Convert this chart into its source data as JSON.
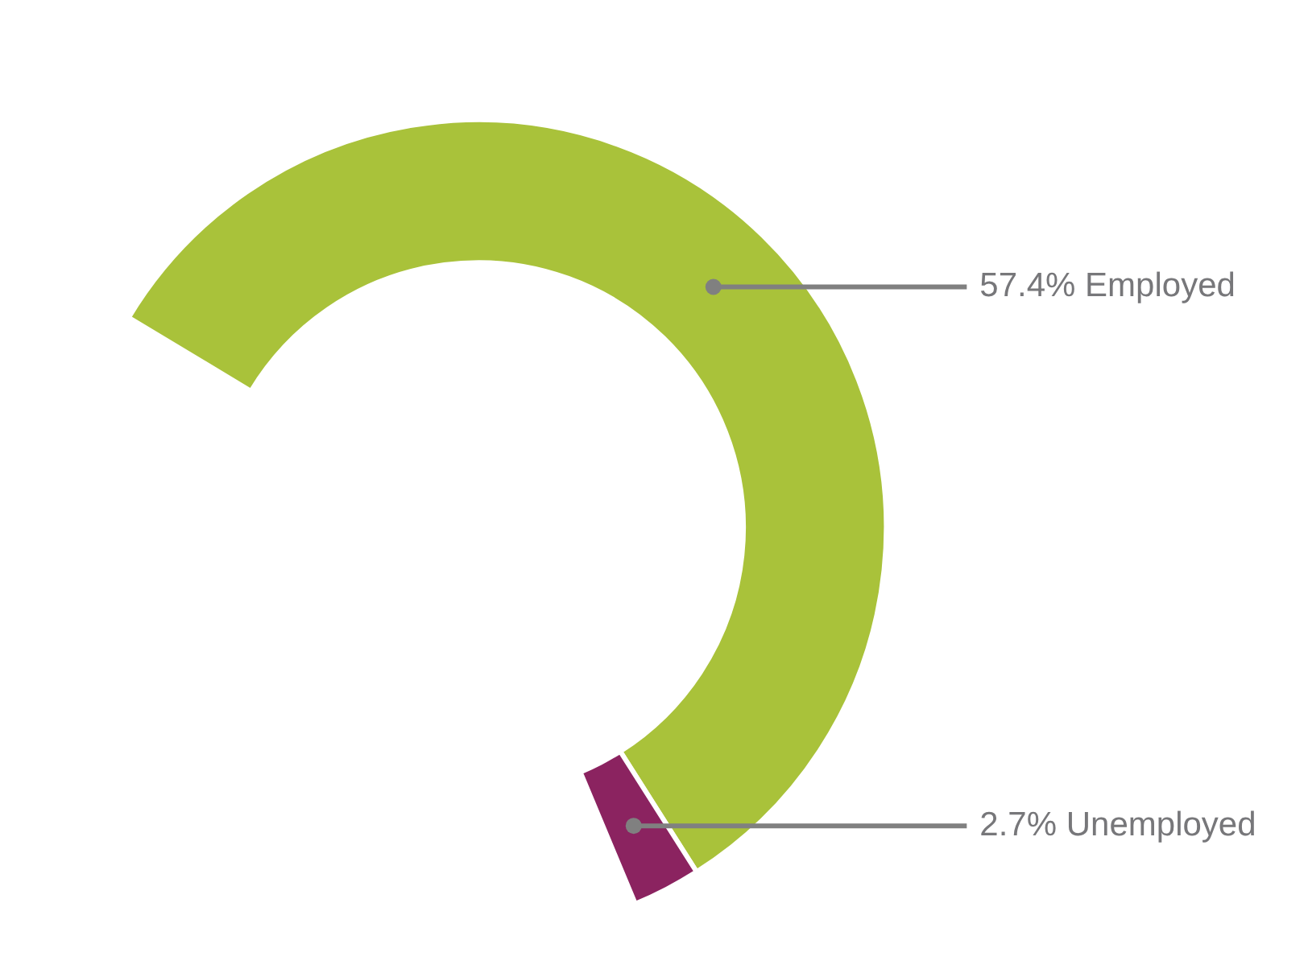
{
  "chart_data": {
    "type": "donut",
    "categories": [
      "Employed",
      "Unemployed"
    ],
    "values": [
      57.4,
      2.7
    ],
    "colors": [
      "#a9c23a",
      "#8b2360"
    ],
    "value_labels": [
      "57.4%",
      "2.7%"
    ]
  }
}
